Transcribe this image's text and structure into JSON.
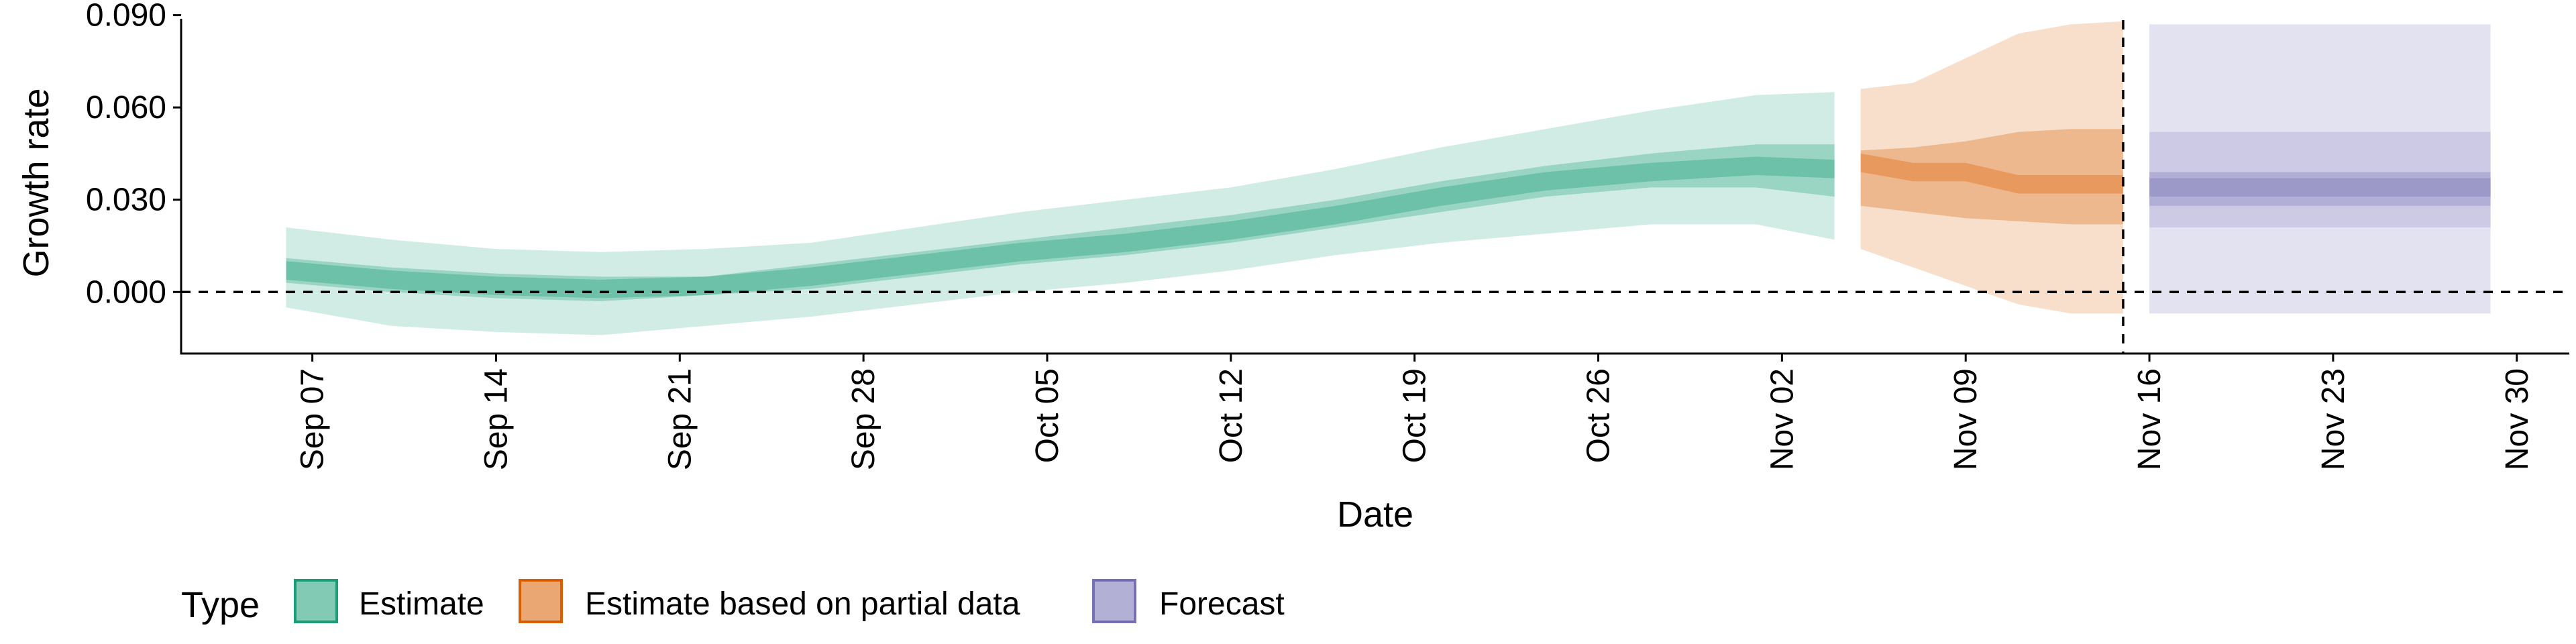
{
  "chart_data": {
    "type": "area",
    "xlabel": "Date",
    "ylabel": "Growth rate",
    "x_ticks": [
      "Sep 07",
      "Sep 14",
      "Sep 21",
      "Sep 28",
      "Oct 05",
      "Oct 12",
      "Oct 19",
      "Oct 26",
      "Nov 02",
      "Nov 09",
      "Nov 16",
      "Nov 23",
      "Nov 30"
    ],
    "x_tick_dates": [
      "2020-09-07",
      "2020-09-14",
      "2020-09-21",
      "2020-09-28",
      "2020-10-05",
      "2020-10-12",
      "2020-10-19",
      "2020-10-26",
      "2020-11-02",
      "2020-11-09",
      "2020-11-16",
      "2020-11-23",
      "2020-11-30"
    ],
    "x_range": [
      "2020-09-02",
      "2020-12-02"
    ],
    "y_ticks": [
      "0.000",
      "0.030",
      "0.060",
      "0.090"
    ],
    "ylim": [
      -0.02,
      0.091
    ],
    "reference_lines": {
      "horizontal_y": 0.0,
      "vertical_date": "2020-11-15",
      "style": "dashed"
    },
    "grid": false,
    "legend": {
      "title": "Type",
      "position": "bottom",
      "items": [
        "Estimate",
        "Estimate based on partial data",
        "Forecast"
      ]
    },
    "colors": {
      "Estimate": "#1b9e77",
      "Estimate based on partial data": "#d95f02",
      "Forecast": "#7570b3"
    },
    "series": [
      {
        "name": "Estimate",
        "color": "#1b9e77",
        "x": [
          "2020-09-06",
          "2020-09-10",
          "2020-09-14",
          "2020-09-18",
          "2020-09-22",
          "2020-09-26",
          "2020-09-30",
          "2020-10-04",
          "2020-10-08",
          "2020-10-12",
          "2020-10-16",
          "2020-10-20",
          "2020-10-24",
          "2020-10-28",
          "2020-11-01",
          "2020-11-04"
        ],
        "median": [
          0.007,
          0.004,
          0.002,
          0.001,
          0.002,
          0.005,
          0.009,
          0.013,
          0.016,
          0.02,
          0.025,
          0.031,
          0.036,
          0.039,
          0.041,
          0.04
        ],
        "lower_50": [
          0.003,
          0.0,
          -0.002,
          -0.003,
          -0.001,
          0.001,
          0.005,
          0.009,
          0.012,
          0.016,
          0.021,
          0.026,
          0.031,
          0.034,
          0.034,
          0.031
        ],
        "upper_50": [
          0.011,
          0.008,
          0.006,
          0.005,
          0.005,
          0.009,
          0.013,
          0.017,
          0.021,
          0.025,
          0.03,
          0.036,
          0.041,
          0.045,
          0.048,
          0.048
        ],
        "lower_90": [
          -0.005,
          -0.011,
          -0.013,
          -0.014,
          -0.011,
          -0.008,
          -0.004,
          0.0,
          0.003,
          0.007,
          0.012,
          0.016,
          0.019,
          0.022,
          0.022,
          0.017
        ],
        "upper_90": [
          0.021,
          0.017,
          0.014,
          0.013,
          0.014,
          0.016,
          0.021,
          0.026,
          0.03,
          0.034,
          0.04,
          0.047,
          0.053,
          0.059,
          0.064,
          0.065
        ]
      },
      {
        "name": "Estimate based on partial data",
        "color": "#d95f02",
        "x": [
          "2020-11-05",
          "2020-11-07",
          "2020-11-09",
          "2020-11-11",
          "2020-11-13",
          "2020-11-15"
        ],
        "median": [
          0.042,
          0.039,
          0.039,
          0.035,
          0.035,
          0.035
        ],
        "lower_50": [
          0.028,
          0.026,
          0.024,
          0.023,
          0.022,
          0.022
        ],
        "upper_50": [
          0.046,
          0.047,
          0.049,
          0.052,
          0.053,
          0.053
        ],
        "lower_90": [
          0.014,
          0.008,
          0.002,
          -0.004,
          -0.007,
          -0.007
        ],
        "upper_90": [
          0.066,
          0.068,
          0.076,
          0.084,
          0.087,
          0.088
        ]
      },
      {
        "name": "Forecast",
        "color": "#7570b3",
        "x": [
          "2020-11-16",
          "2020-11-29"
        ],
        "median": [
          0.034,
          0.034
        ],
        "lower_50": [
          0.028,
          0.028
        ],
        "upper_50": [
          0.039,
          0.039
        ],
        "lower_90": [
          0.021,
          0.021
        ],
        "upper_90": [
          0.052,
          0.052
        ],
        "lower_outer": [
          -0.007,
          -0.007
        ],
        "upper_outer": [
          0.087,
          0.087
        ]
      }
    ]
  }
}
